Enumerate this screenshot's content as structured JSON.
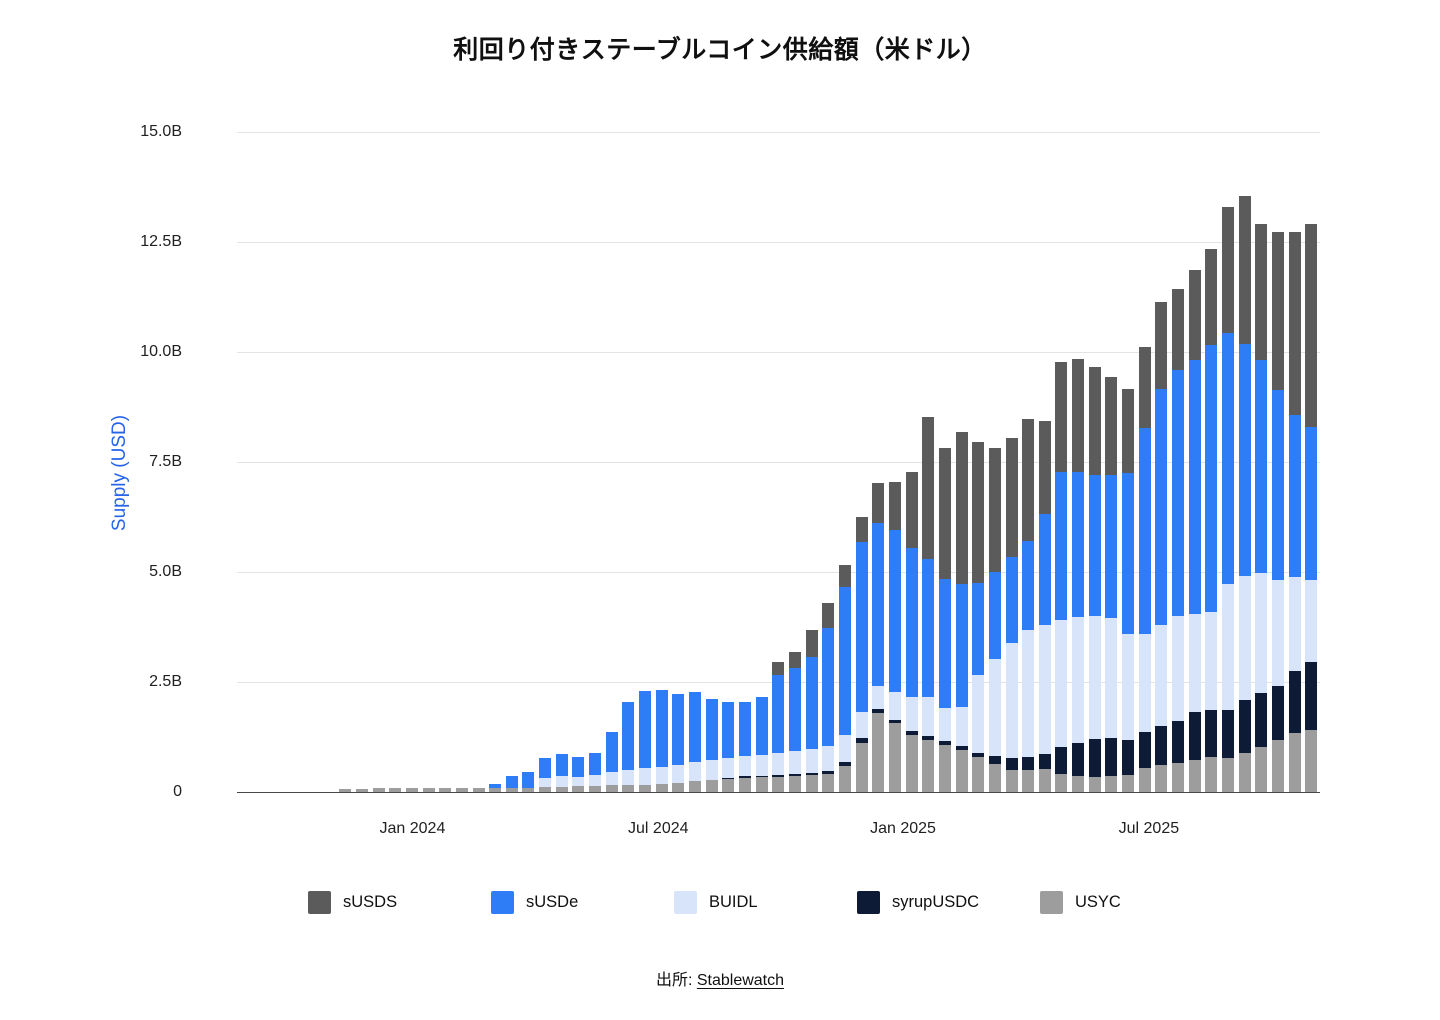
{
  "chart_data": {
    "type": "bar",
    "stacked": true,
    "title": "利回り付きステーブルコイン供給額（米ドル）",
    "ylabel": "Supply (USD)",
    "ylim": [
      0,
      15
    ],
    "grid": "horizontal",
    "legend_position": "bottom",
    "source_prefix": "出所:",
    "source_link": "Stablewatch",
    "y_ticks": [
      {
        "label": "0",
        "value": 0
      },
      {
        "label": "2.5B",
        "value": 2.5
      },
      {
        "label": "5.0B",
        "value": 5
      },
      {
        "label": "7.5B",
        "value": 7.5
      },
      {
        "label": "10.0B",
        "value": 10
      },
      {
        "label": "12.5B",
        "value": 12.5
      },
      {
        "label": "15.0B",
        "value": 15
      }
    ],
    "x_ticks": [
      {
        "label": "Jan 2024",
        "pct": 16.2
      },
      {
        "label": "Jul 2024",
        "pct": 38.9
      },
      {
        "label": "Jan 2025",
        "pct": 61.5
      },
      {
        "label": "Jul 2025",
        "pct": 84.2
      }
    ],
    "categories": [
      "2023-09-01",
      "2023-09-13",
      "2023-09-26",
      "2023-10-08",
      "2023-10-20",
      "2023-11-01",
      "2023-11-13",
      "2023-11-25",
      "2023-12-08",
      "2023-12-20",
      "2024-01-01",
      "2024-01-14",
      "2024-01-26",
      "2024-02-07",
      "2024-02-20",
      "2024-03-03",
      "2024-03-15",
      "2024-03-28",
      "2024-04-09",
      "2024-04-21",
      "2024-05-04",
      "2024-05-16",
      "2024-05-28",
      "2024-06-10",
      "2024-06-22",
      "2024-07-04",
      "2024-07-17",
      "2024-07-29",
      "2024-08-10",
      "2024-08-23",
      "2024-09-04",
      "2024-09-16",
      "2024-09-29",
      "2024-10-11",
      "2024-10-23",
      "2024-11-05",
      "2024-11-17",
      "2024-11-29",
      "2024-12-12",
      "2024-12-24",
      "2025-01-05",
      "2025-01-18",
      "2025-01-30",
      "2025-02-11",
      "2025-02-24",
      "2025-03-08",
      "2025-03-20",
      "2025-04-02",
      "2025-04-14",
      "2025-04-26",
      "2025-05-09",
      "2025-05-21",
      "2025-06-02",
      "2025-06-15",
      "2025-06-27",
      "2025-07-09",
      "2025-07-22",
      "2025-08-03",
      "2025-08-15",
      "2025-08-28",
      "2025-09-09",
      "2025-09-21",
      "2025-10-04",
      "2025-10-16",
      "2025-10-28"
    ],
    "series": [
      {
        "name": "sUSDS",
        "color": "#5b5b5b",
        "values": [
          0,
          0,
          0,
          0,
          0,
          0,
          0,
          0,
          0,
          0,
          0,
          0,
          0,
          0,
          0,
          0,
          0,
          0,
          0,
          0,
          0,
          0,
          0,
          0,
          0,
          0,
          0,
          0,
          0,
          0,
          0,
          0,
          0.3,
          0.36,
          0.61,
          0.57,
          0.5,
          0.56,
          0.9,
          1.1,
          1.74,
          3.23,
          2.97,
          3.45,
          3.2,
          2.82,
          2.69,
          2.76,
          2.12,
          2.49,
          2.57,
          2.47,
          2.24,
          1.91,
          1.83,
          1.96,
          1.85,
          2.03,
          2.19,
          2.86,
          3.37,
          3.1,
          3.59,
          4.15,
          4.62
        ]
      },
      {
        "name": "sUSDe",
        "color": "#2e7df6",
        "values": [
          0,
          0,
          0,
          0,
          0,
          0,
          0,
          0,
          0,
          0,
          0,
          0,
          0,
          0,
          0,
          0.08,
          0.26,
          0.35,
          0.45,
          0.49,
          0.45,
          0.5,
          0.91,
          1.55,
          1.76,
          1.74,
          1.61,
          1.59,
          1.39,
          1.26,
          1.22,
          1.3,
          1.76,
          1.89,
          2.09,
          2.69,
          3.36,
          3.86,
          3.71,
          3.67,
          3.37,
          3.12,
          2.94,
          2.79,
          2.09,
          1.99,
          1.97,
          2.03,
          2.52,
          3.37,
          3.3,
          3.2,
          3.25,
          3.65,
          4.68,
          5.37,
          5.59,
          5.78,
          6.06,
          5.71,
          5.27,
          4.84,
          4.31,
          3.68,
          3.47
        ]
      },
      {
        "name": "BUIDL",
        "color": "#d7e4fa",
        "values": [
          0,
          0,
          0,
          0,
          0,
          0,
          0,
          0,
          0,
          0,
          0,
          0,
          0,
          0,
          0,
          0,
          0,
          0,
          0.2,
          0.25,
          0.22,
          0.25,
          0.3,
          0.35,
          0.38,
          0.4,
          0.42,
          0.44,
          0.45,
          0.45,
          0.46,
          0.48,
          0.5,
          0.52,
          0.54,
          0.56,
          0.62,
          0.61,
          0.53,
          0.64,
          0.78,
          0.9,
          0.75,
          0.89,
          1.77,
          2.2,
          2.61,
          2.88,
          2.94,
          2.89,
          2.87,
          2.8,
          2.72,
          2.42,
          2.24,
          2.31,
          2.39,
          2.24,
          2.24,
          2.87,
          2.82,
          2.72,
          2.41,
          2.13,
          1.87
        ]
      },
      {
        "name": "syrupUSDC",
        "color": "#0e1b36",
        "values": [
          0,
          0,
          0,
          0,
          0,
          0,
          0,
          0,
          0,
          0,
          0,
          0,
          0,
          0,
          0,
          0,
          0,
          0,
          0,
          0,
          0,
          0,
          0,
          0,
          0,
          0,
          0,
          0,
          0,
          0.03,
          0.04,
          0.04,
          0.05,
          0.05,
          0.06,
          0.06,
          0.08,
          0.11,
          0.08,
          0.08,
          0.09,
          0.09,
          0.09,
          0.1,
          0.1,
          0.18,
          0.27,
          0.3,
          0.34,
          0.6,
          0.75,
          0.85,
          0.86,
          0.8,
          0.81,
          0.88,
          0.94,
          1.08,
          1.06,
          1.09,
          1.21,
          1.24,
          1.24,
          1.43,
          1.55
        ]
      },
      {
        "name": "USYC",
        "color": "#9d9d9d",
        "values": [
          0,
          0,
          0,
          0,
          0,
          0,
          0.07,
          0.07,
          0.08,
          0.08,
          0.09,
          0.09,
          0.09,
          0.1,
          0.1,
          0.1,
          0.1,
          0.1,
          0.12,
          0.12,
          0.13,
          0.14,
          0.15,
          0.15,
          0.16,
          0.18,
          0.2,
          0.24,
          0.27,
          0.3,
          0.32,
          0.33,
          0.34,
          0.36,
          0.38,
          0.42,
          0.6,
          1.11,
          1.8,
          1.56,
          1.3,
          1.18,
          1.07,
          0.95,
          0.79,
          0.64,
          0.5,
          0.5,
          0.52,
          0.42,
          0.36,
          0.35,
          0.37,
          0.38,
          0.55,
          0.61,
          0.67,
          0.73,
          0.8,
          0.77,
          0.88,
          1.02,
          1.18,
          1.33,
          1.41
        ]
      }
    ]
  }
}
